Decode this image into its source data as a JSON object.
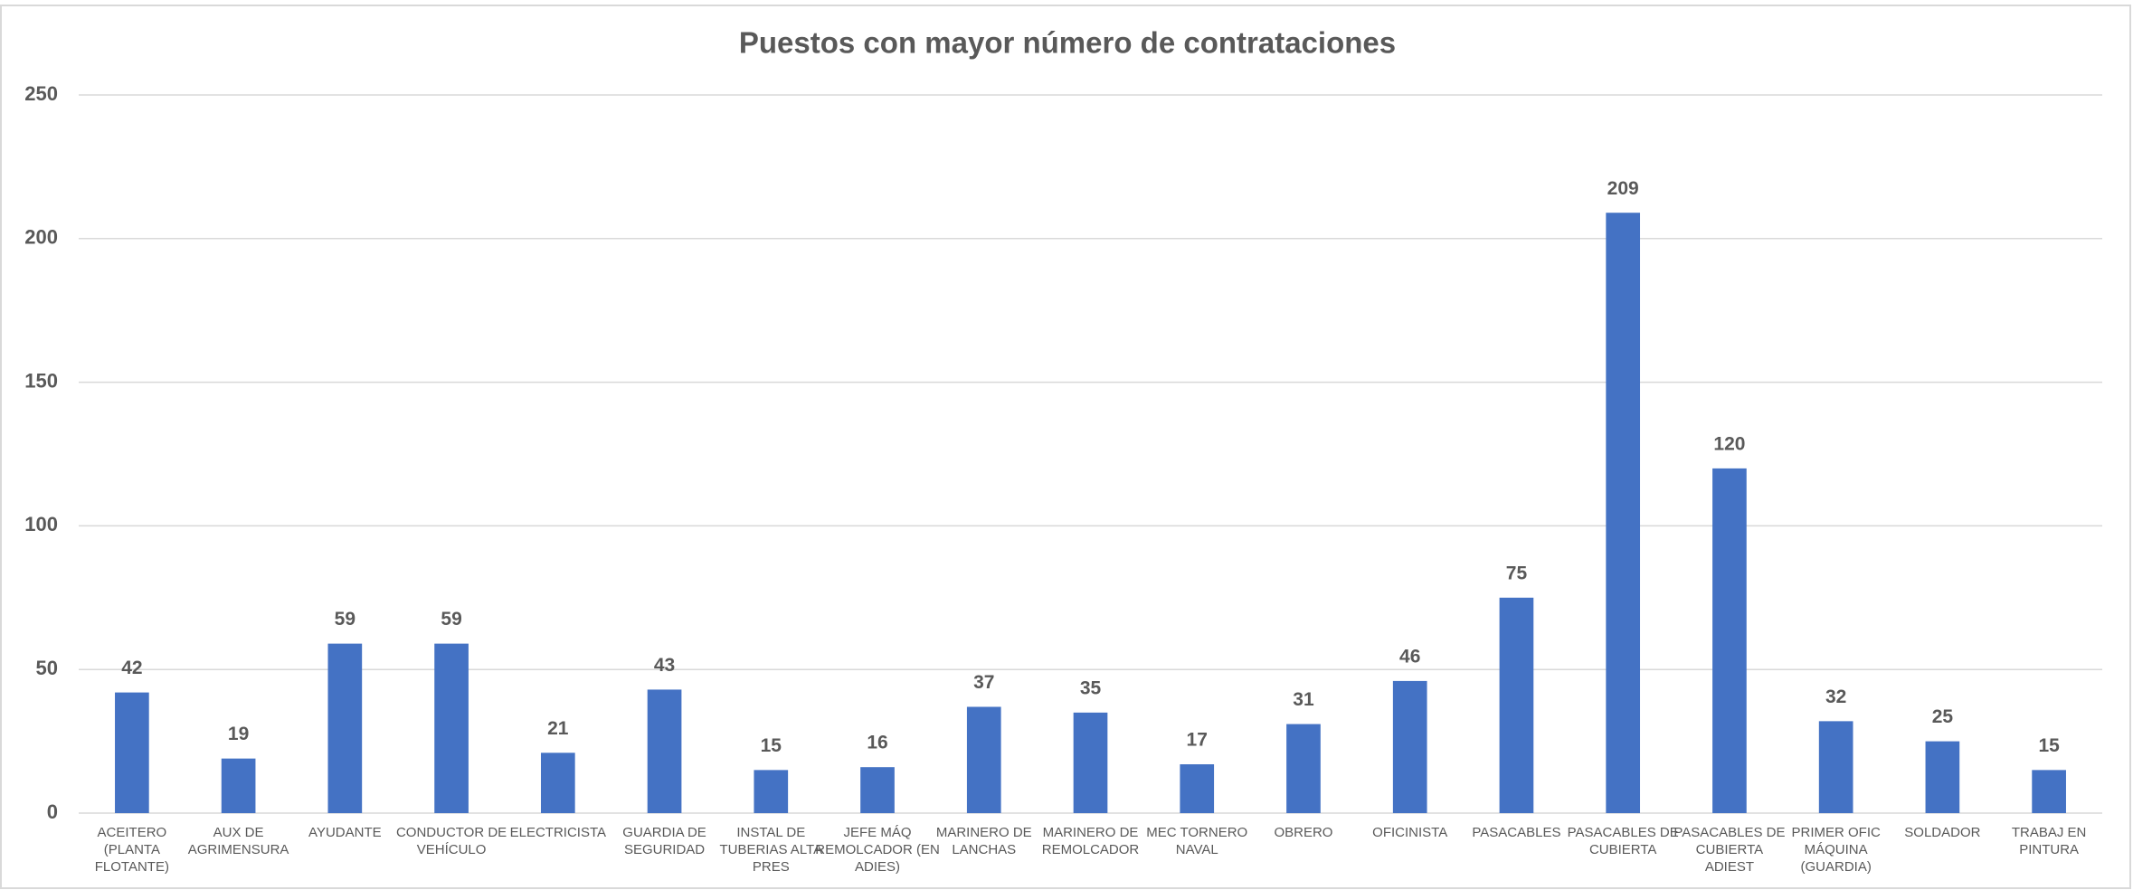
{
  "chart_data": {
    "type": "bar",
    "title": "Puestos con mayor número de contrataciones",
    "categories": [
      "ACEITERO (PLANTA FLOTANTE)",
      "AUX DE AGRIMENSURA",
      "AYUDANTE",
      "CONDUCTOR DE VEHÍCULO",
      "ELECTRICISTA",
      "GUARDIA DE SEGURIDAD",
      "INSTAL DE TUBERIAS ALTA PRES",
      "JEFE MÁQ REMOLCADOR (EN ADIES)",
      "MARINERO DE LANCHAS",
      "MARINERO DE REMOLCADOR",
      "MEC TORNERO NAVAL",
      "OBRERO",
      "OFICINISTA",
      "PASACABLES",
      "PASACABLES DE CUBIERTA",
      "PASACABLES DE CUBIERTA ADIEST",
      "PRIMER OFIC MÁQUINA (GUARDIA)",
      "SOLDADOR",
      "TRABAJ EN PINTURA"
    ],
    "values": [
      42,
      19,
      59,
      59,
      21,
      43,
      15,
      16,
      37,
      35,
      17,
      31,
      46,
      75,
      209,
      120,
      32,
      25,
      15
    ],
    "color": "#4472c4",
    "ylim": [
      0,
      250
    ],
    "yticks": [
      0,
      50,
      100,
      150,
      200,
      250
    ],
    "grid": true
  }
}
